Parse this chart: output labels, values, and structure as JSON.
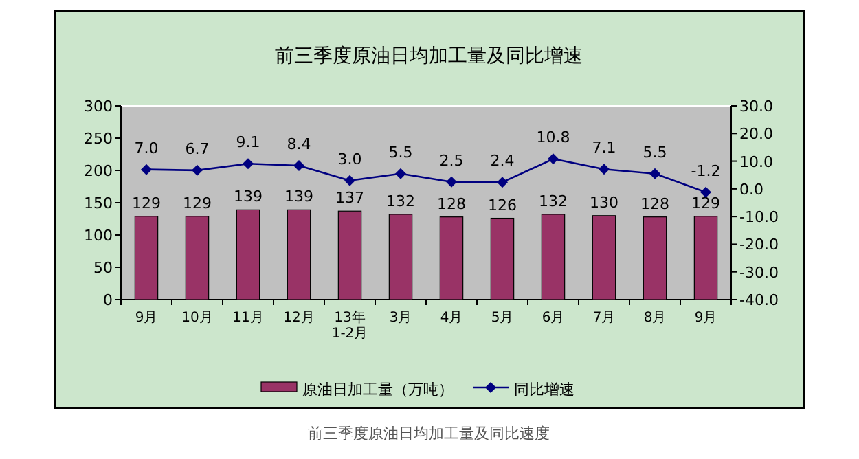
{
  "chart_data": {
    "type": "bar",
    "title": "前三季度原油日均加工量及同比增速",
    "categories": [
      "9月",
      "10月",
      "11月",
      "12月",
      "13年\n1-2月",
      "3月",
      "4月",
      "5月",
      "6月",
      "7月",
      "8月",
      "9月"
    ],
    "series": [
      {
        "name": "原油日加工量（万吨）",
        "color": "#993366",
        "values": [
          129,
          129,
          139,
          139,
          137,
          132,
          128,
          126,
          132,
          130,
          128,
          129
        ],
        "value_labels": [
          "129",
          "129",
          "139",
          "139",
          "137",
          "132",
          "128",
          "126",
          "132",
          "130",
          "128",
          "129"
        ]
      },
      {
        "name": "同比增速",
        "type": "line",
        "axis": "y2",
        "color": "#000080",
        "marker": "diamond",
        "values": [
          7.0,
          6.7,
          9.1,
          8.4,
          3.0,
          5.5,
          2.5,
          2.4,
          10.8,
          7.1,
          5.5,
          -1.2
        ],
        "value_labels": [
          "7.0",
          "6.7",
          "9.1",
          "8.4",
          "3.0",
          "5.5",
          "2.5",
          "2.4",
          "10.8",
          "7.1",
          "5.5",
          "-1.2"
        ]
      }
    ],
    "ylim": [
      0,
      300
    ],
    "yticks": [
      0,
      50,
      100,
      150,
      200,
      250,
      300
    ],
    "y2lim": [
      -40,
      30
    ],
    "y2ticks": [
      {
        "value": -40,
        "label": "-40.0"
      },
      {
        "value": -30,
        "label": "-30.0"
      },
      {
        "value": -20,
        "label": "-20.0"
      },
      {
        "value": -10,
        "label": "-10.0"
      },
      {
        "value": 0,
        "label": "0.0"
      },
      {
        "value": 10,
        "label": "10.0"
      },
      {
        "value": 20,
        "label": "20.0"
      },
      {
        "value": 30,
        "label": "30.0"
      }
    ],
    "legend": "bottom",
    "annotations": [
      "前三季度原油日均加工量及同比速度"
    ]
  }
}
